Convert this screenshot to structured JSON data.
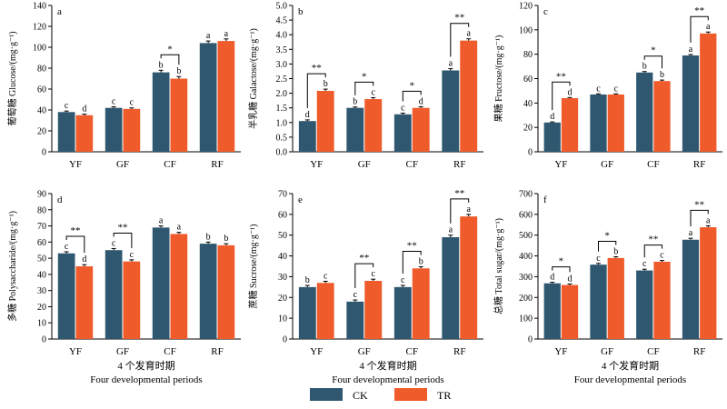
{
  "colors": {
    "CK": "#2f5870",
    "TR": "#ef5b2a"
  },
  "legend": [
    {
      "key": "CK",
      "label": "CK"
    },
    {
      "key": "TR",
      "label": "TR"
    }
  ],
  "chart_data": [
    {
      "type": "bar",
      "panel": "a",
      "categories": [
        "YF",
        "GF",
        "CF",
        "RF"
      ],
      "ylabel": "葡萄糖 Glucose/(mg·g⁻¹)",
      "xlabel_cn": "",
      "xlabel_en": "",
      "ylim": [
        0,
        140
      ],
      "yticks": [
        0,
        20,
        40,
        60,
        80,
        100,
        120,
        140
      ],
      "decimals": 0,
      "series": [
        {
          "name": "CK",
          "values": [
            38,
            42,
            76,
            104
          ],
          "errors": [
            1,
            1,
            2,
            2
          ],
          "letters": [
            "c",
            "c",
            "b",
            "a"
          ]
        },
        {
          "name": "TR",
          "values": [
            35,
            41,
            70,
            106
          ],
          "errors": [
            1,
            1,
            2,
            2
          ],
          "letters": [
            "d",
            "c",
            "b",
            "a"
          ]
        }
      ],
      "significance": [
        "",
        "",
        "*",
        ""
      ]
    },
    {
      "type": "bar",
      "panel": "b",
      "categories": [
        "YF",
        "GF",
        "CF",
        "RF"
      ],
      "ylabel": "半乳糖 Galactose/(mg·g⁻¹)",
      "xlabel_cn": "",
      "xlabel_en": "",
      "ylim": [
        0,
        5.0
      ],
      "yticks": [
        0,
        0.5,
        1.0,
        1.5,
        2.0,
        2.5,
        3.0,
        3.5,
        4.0,
        4.5,
        5.0
      ],
      "decimals": 1,
      "series": [
        {
          "name": "CK",
          "values": [
            1.05,
            1.5,
            1.28,
            2.78
          ],
          "errors": [
            0.04,
            0.03,
            0.04,
            0.06
          ],
          "letters": [
            "d",
            "b",
            "c",
            "a"
          ]
        },
        {
          "name": "TR",
          "values": [
            2.08,
            1.8,
            1.5,
            3.8
          ],
          "errors": [
            0.06,
            0.05,
            0.04,
            0.06
          ],
          "letters": [
            "b",
            "c",
            "d",
            "a"
          ]
        }
      ],
      "significance": [
        "**",
        "*",
        "*",
        "**"
      ]
    },
    {
      "type": "bar",
      "panel": "c",
      "categories": [
        "YF",
        "GF",
        "CF",
        "RF"
      ],
      "ylabel": "果糖 Fructose/(mg·g⁻¹)",
      "xlabel_cn": "",
      "xlabel_en": "",
      "ylim": [
        0,
        120
      ],
      "yticks": [
        0,
        20,
        40,
        60,
        80,
        100,
        120
      ],
      "decimals": 0,
      "series": [
        {
          "name": "CK",
          "values": [
            24,
            47,
            65,
            79
          ],
          "errors": [
            0.5,
            0.5,
            0.8,
            0.8
          ],
          "letters": [
            "d",
            "c",
            "b",
            "a"
          ]
        },
        {
          "name": "TR",
          "values": [
            44,
            47,
            58,
            97
          ],
          "errors": [
            0.5,
            0.5,
            0.8,
            1.2
          ],
          "letters": [
            "d",
            "c",
            "b",
            "a"
          ]
        }
      ],
      "significance": [
        "**",
        "",
        "*",
        "**"
      ]
    },
    {
      "type": "bar",
      "panel": "d",
      "categories": [
        "YF",
        "GF",
        "CF",
        "RF"
      ],
      "ylabel": "多糖 Polysaccharide/(mg·g⁻¹)",
      "xlabel_cn": "4 个发育时期",
      "xlabel_en": "Four developmental periods",
      "ylim": [
        0,
        90
      ],
      "yticks": [
        0,
        10,
        20,
        30,
        40,
        50,
        60,
        70,
        80,
        90
      ],
      "decimals": 0,
      "series": [
        {
          "name": "CK",
          "values": [
            53,
            55,
            69,
            59
          ],
          "errors": [
            1,
            1,
            1,
            1
          ],
          "letters": [
            "c",
            "c",
            "a",
            "b"
          ]
        },
        {
          "name": "TR",
          "values": [
            45,
            48,
            65,
            58
          ],
          "errors": [
            1,
            1,
            1,
            1
          ],
          "letters": [
            "d",
            "c",
            "a",
            "b"
          ]
        }
      ],
      "significance": [
        "**",
        "**",
        "",
        ""
      ]
    },
    {
      "type": "bar",
      "panel": "e",
      "categories": [
        "YF",
        "GF",
        "CF",
        "RF"
      ],
      "ylabel": "蔗糖 Sucrose/(mg·g⁻¹)",
      "xlabel_cn": "4 个发育时期",
      "xlabel_en": "Four developmental periods",
      "ylim": [
        0,
        70
      ],
      "yticks": [
        0,
        10,
        20,
        30,
        40,
        50,
        60,
        70
      ],
      "decimals": 0,
      "series": [
        {
          "name": "CK",
          "values": [
            25,
            18,
            25,
            49
          ],
          "errors": [
            0.8,
            0.8,
            0.8,
            1
          ],
          "letters": [
            "b",
            "c",
            "c",
            "a"
          ]
        },
        {
          "name": "TR",
          "values": [
            27,
            28,
            34,
            59
          ],
          "errors": [
            0.8,
            0.8,
            0.8,
            1
          ],
          "letters": [
            "c",
            "c",
            "b",
            "a"
          ]
        }
      ],
      "significance": [
        "",
        "**",
        "**",
        "**"
      ]
    },
    {
      "type": "bar",
      "panel": "f",
      "categories": [
        "YF",
        "GF",
        "CF",
        "RF"
      ],
      "ylabel": "总糖 Total sugar/(mg·g⁻¹)",
      "xlabel_cn": "4 个发育时期",
      "xlabel_en": "Four developmental periods",
      "ylim": [
        0,
        700
      ],
      "yticks": [
        0,
        100,
        200,
        300,
        400,
        500,
        600,
        700
      ],
      "decimals": 0,
      "series": [
        {
          "name": "CK",
          "values": [
            268,
            358,
            330,
            478
          ],
          "errors": [
            5,
            6,
            6,
            7
          ],
          "letters": [
            "d",
            "c",
            "c",
            "a"
          ]
        },
        {
          "name": "TR",
          "values": [
            260,
            390,
            372,
            538
          ],
          "errors": [
            5,
            6,
            6,
            7
          ],
          "letters": [
            "d",
            "b",
            "c",
            "a"
          ]
        }
      ],
      "significance": [
        "*",
        "*",
        "**",
        "**"
      ]
    }
  ]
}
